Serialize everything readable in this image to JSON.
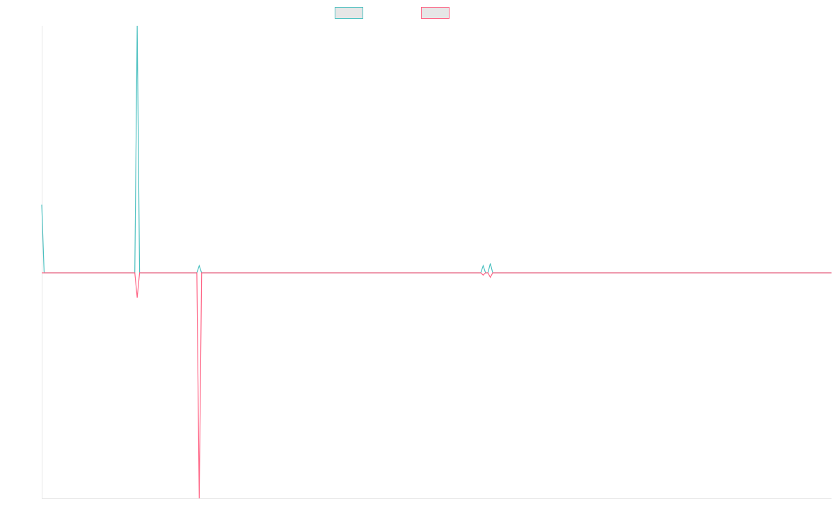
{
  "chart_data": {
    "type": "line",
    "title": "",
    "xlabel": "",
    "ylabel": "",
    "grid": false,
    "legend_position": "top-center",
    "y_range": [
      -1.0,
      1.05
    ],
    "x_count": 332,
    "series": [
      {
        "color": "#4bc0c0",
        "fill": "#e6e6e6",
        "points": [
          [
            0,
            0.29
          ],
          [
            1,
            0.0
          ],
          [
            39,
            0.0
          ],
          [
            40,
            1.05
          ],
          [
            41,
            0.0
          ],
          [
            65,
            0.0
          ],
          [
            66,
            0.03
          ],
          [
            67,
            0.0
          ],
          [
            184,
            0.0
          ],
          [
            185,
            0.03
          ],
          [
            186,
            0.0
          ],
          [
            187,
            0.0
          ],
          [
            188,
            0.04
          ],
          [
            189,
            0.0
          ],
          [
            331,
            0.0
          ]
        ]
      },
      {
        "color": "#ff6384",
        "fill": "#e6e6e6",
        "points": [
          [
            0,
            0.0
          ],
          [
            39,
            0.0
          ],
          [
            40,
            -0.11
          ],
          [
            41,
            0.0
          ],
          [
            65,
            0.0
          ],
          [
            66,
            -1.0
          ],
          [
            67,
            0.0
          ],
          [
            184,
            0.0
          ],
          [
            185,
            -0.01
          ],
          [
            186,
            0.0
          ],
          [
            187,
            0.0
          ],
          [
            188,
            -0.02
          ],
          [
            189,
            0.0
          ],
          [
            331,
            0.0
          ]
        ]
      }
    ]
  }
}
